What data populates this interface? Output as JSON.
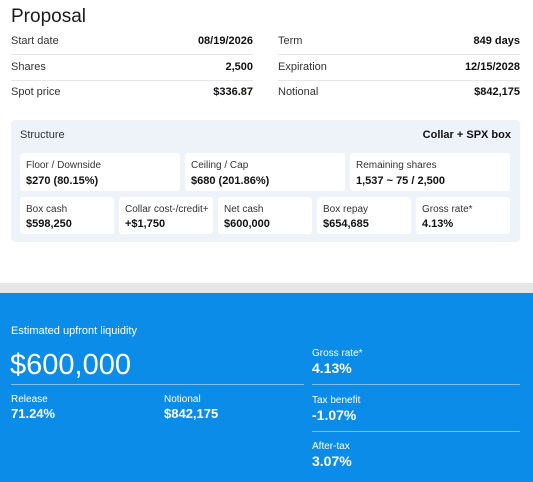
{
  "header": {
    "title": "Proposal"
  },
  "summary": {
    "left": [
      {
        "label": "Start date",
        "value": "08/19/2026"
      },
      {
        "label": "Shares",
        "value": "2,500"
      },
      {
        "label": "Spot price",
        "value": "$336.87"
      }
    ],
    "right": [
      {
        "label": "Term",
        "value": "849 days"
      },
      {
        "label": "Expiration",
        "value": "12/15/2028"
      },
      {
        "label": "Notional",
        "value": "$842,175"
      }
    ]
  },
  "structure": {
    "title": "Structure",
    "value": "Collar + SPX box",
    "primary": [
      {
        "label": "Floor / Downside",
        "value": "$270 (80.15%)"
      },
      {
        "label": "Ceiling / Cap",
        "value": "$680 (201.86%)"
      },
      {
        "label": "Remaining shares",
        "value": "1,537 ~ 75 / 2,500"
      }
    ],
    "secondary": [
      {
        "label": "Box cash",
        "value": "$598,250"
      },
      {
        "label": "Collar cost-/credit+",
        "value": "+$1,750"
      },
      {
        "label": "Net cash",
        "value": "$600,000"
      },
      {
        "label": "Box repay",
        "value": "$654,685"
      },
      {
        "label": "Gross rate*",
        "value": "4.13%"
      }
    ]
  },
  "liquidity": {
    "title": "Estimated upfront liquidity",
    "amount": "$600,000",
    "stats": [
      {
        "label": "Release",
        "value": "71.24%"
      },
      {
        "label": "Notional",
        "value": "$842,175"
      }
    ],
    "rates": [
      {
        "label": "Gross rate*",
        "value": "4.13%"
      },
      {
        "label": "Tax benefit",
        "value": "-1.07%"
      },
      {
        "label": "After-tax",
        "value": "3.07%"
      }
    ]
  }
}
